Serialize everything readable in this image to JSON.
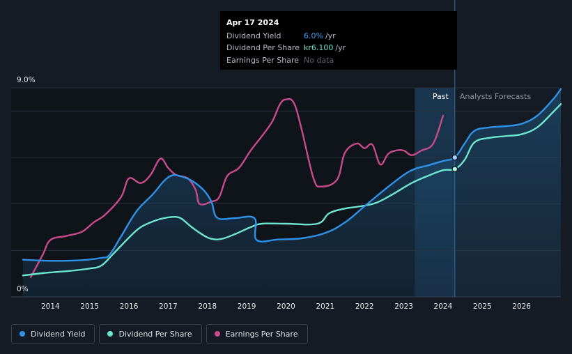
{
  "colors": {
    "dividend_yield": "#2e93e8",
    "dividend_per_share": "#6ee7d0",
    "earnings_per_share": "#c94b8c",
    "past_label": "#ffffff",
    "forecast_label": "#8e95a0"
  },
  "tooltip": {
    "date": "Apr 17 2024",
    "rows": [
      {
        "label": "Dividend Yield",
        "value": "6.0%",
        "unit": "/yr",
        "color": "#3b9df2"
      },
      {
        "label": "Dividend Per Share",
        "value": "kr6.100",
        "unit": "/yr",
        "color": "#6ee7d0"
      },
      {
        "label": "Earnings Per Share",
        "value": "No data",
        "unit": "",
        "color": ""
      }
    ]
  },
  "regions": {
    "past_label": "Past",
    "forecast_label": "Analysts Forecasts"
  },
  "legend": [
    {
      "label": "Dividend Yield",
      "color": "#2e93e8"
    },
    {
      "label": "Dividend Per Share",
      "color": "#6ee7d0"
    },
    {
      "label": "Earnings Per Share",
      "color": "#c94b8c"
    }
  ],
  "chart_data": {
    "type": "line",
    "title": "",
    "xlabel": "",
    "ylabel": "",
    "xlim": [
      2013,
      2027.0
    ],
    "ylim": [
      0,
      9
    ],
    "y_tick_labels": [
      {
        "value": 9,
        "label": "9.0%"
      },
      {
        "value": 0,
        "label": "0%"
      }
    ],
    "x_ticks": [
      2014,
      2015,
      2016,
      2017,
      2018,
      2019,
      2020,
      2021,
      2022,
      2023,
      2024,
      2025,
      2026
    ],
    "gridlines": [
      9,
      8,
      6,
      4,
      2,
      0
    ],
    "past_shade_start": 2023.28,
    "current_date": 2024.3,
    "series": [
      {
        "name": "Dividend Yield",
        "points": [
          [
            2013.3,
            1.6
          ],
          [
            2014.0,
            1.55
          ],
          [
            2014.8,
            1.58
          ],
          [
            2015.3,
            1.68
          ],
          [
            2015.5,
            1.8
          ],
          [
            2015.8,
            2.6
          ],
          [
            2016.2,
            3.7
          ],
          [
            2016.6,
            4.4
          ],
          [
            2016.9,
            5.0
          ],
          [
            2017.1,
            5.23
          ],
          [
            2017.3,
            5.2
          ],
          [
            2017.6,
            5.0
          ],
          [
            2017.9,
            4.6
          ],
          [
            2018.1,
            4.1
          ],
          [
            2018.25,
            3.4
          ],
          [
            2018.7,
            3.39
          ],
          [
            2019.2,
            3.38
          ],
          [
            2019.25,
            2.45
          ],
          [
            2019.8,
            2.47
          ],
          [
            2020.4,
            2.52
          ],
          [
            2021.0,
            2.75
          ],
          [
            2021.5,
            3.2
          ],
          [
            2022.0,
            3.9
          ],
          [
            2022.5,
            4.6
          ],
          [
            2023.0,
            5.25
          ],
          [
            2023.3,
            5.52
          ],
          [
            2023.6,
            5.65
          ],
          [
            2024.0,
            5.85
          ],
          [
            2024.3,
            6.0
          ],
          [
            2024.55,
            6.6
          ],
          [
            2024.8,
            7.15
          ],
          [
            2025.2,
            7.3
          ],
          [
            2025.6,
            7.35
          ],
          [
            2026.0,
            7.45
          ],
          [
            2026.4,
            7.8
          ],
          [
            2026.8,
            8.5
          ],
          [
            2027.0,
            8.95
          ]
        ]
      },
      {
        "name": "Dividend Per Share",
        "points": [
          [
            2013.3,
            0.92
          ],
          [
            2013.8,
            1.02
          ],
          [
            2014.5,
            1.12
          ],
          [
            2015.0,
            1.22
          ],
          [
            2015.3,
            1.35
          ],
          [
            2015.6,
            1.85
          ],
          [
            2016.0,
            2.55
          ],
          [
            2016.3,
            3.0
          ],
          [
            2016.7,
            3.3
          ],
          [
            2017.0,
            3.42
          ],
          [
            2017.2,
            3.44
          ],
          [
            2017.35,
            3.35
          ],
          [
            2017.6,
            3.0
          ],
          [
            2017.9,
            2.65
          ],
          [
            2018.1,
            2.5
          ],
          [
            2018.35,
            2.49
          ],
          [
            2018.7,
            2.7
          ],
          [
            2019.1,
            3.0
          ],
          [
            2019.4,
            3.15
          ],
          [
            2020.0,
            3.15
          ],
          [
            2020.8,
            3.15
          ],
          [
            2021.1,
            3.6
          ],
          [
            2021.5,
            3.8
          ],
          [
            2021.9,
            3.9
          ],
          [
            2022.3,
            4.05
          ],
          [
            2022.7,
            4.4
          ],
          [
            2023.2,
            4.9
          ],
          [
            2023.6,
            5.2
          ],
          [
            2024.0,
            5.45
          ],
          [
            2024.3,
            5.5
          ],
          [
            2024.55,
            5.9
          ],
          [
            2024.8,
            6.65
          ],
          [
            2025.2,
            6.85
          ],
          [
            2025.6,
            6.92
          ],
          [
            2026.0,
            7.0
          ],
          [
            2026.4,
            7.3
          ],
          [
            2026.8,
            7.95
          ],
          [
            2027.0,
            8.3
          ]
        ]
      },
      {
        "name": "Earnings Per Share",
        "points": [
          [
            2013.5,
            0.85
          ],
          [
            2013.8,
            1.8
          ],
          [
            2014.0,
            2.45
          ],
          [
            2014.4,
            2.62
          ],
          [
            2014.8,
            2.8
          ],
          [
            2015.1,
            3.2
          ],
          [
            2015.4,
            3.55
          ],
          [
            2015.8,
            4.3
          ],
          [
            2016.0,
            5.1
          ],
          [
            2016.3,
            4.9
          ],
          [
            2016.55,
            5.25
          ],
          [
            2016.8,
            5.95
          ],
          [
            2017.0,
            5.55
          ],
          [
            2017.2,
            5.25
          ],
          [
            2017.5,
            5.1
          ],
          [
            2017.7,
            4.6
          ],
          [
            2017.8,
            4.0
          ],
          [
            2018.1,
            4.1
          ],
          [
            2018.3,
            4.3
          ],
          [
            2018.5,
            5.2
          ],
          [
            2018.8,
            5.55
          ],
          [
            2019.1,
            6.3
          ],
          [
            2019.4,
            6.95
          ],
          [
            2019.65,
            7.55
          ],
          [
            2019.85,
            8.3
          ],
          [
            2020.0,
            8.5
          ],
          [
            2020.2,
            8.35
          ],
          [
            2020.4,
            7.2
          ],
          [
            2020.7,
            5.1
          ],
          [
            2020.9,
            4.75
          ],
          [
            2021.3,
            5.05
          ],
          [
            2021.5,
            6.2
          ],
          [
            2021.8,
            6.6
          ],
          [
            2022.0,
            6.4
          ],
          [
            2022.2,
            6.55
          ],
          [
            2022.4,
            5.7
          ],
          [
            2022.6,
            6.15
          ],
          [
            2022.8,
            6.3
          ],
          [
            2023.0,
            6.3
          ],
          [
            2023.2,
            6.1
          ],
          [
            2023.45,
            6.3
          ],
          [
            2023.75,
            6.6
          ],
          [
            2024.0,
            7.8
          ]
        ]
      }
    ],
    "markers": [
      {
        "series": "Dividend Yield",
        "x": 2024.3,
        "y": 6.0
      },
      {
        "series": "Dividend Per Share",
        "x": 2024.3,
        "y": 5.5
      }
    ]
  }
}
